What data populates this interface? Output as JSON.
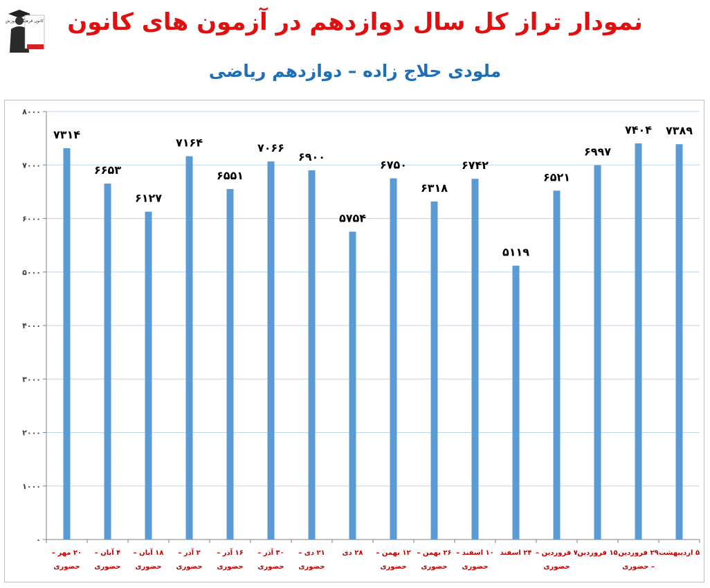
{
  "header": {
    "title": "نمودار تراز کل سال دوازدهم در آزمون های کانون",
    "subtitle": "ملودی حلاج زاده – دوازدهم ریاضی"
  },
  "logo": {
    "text": "کانون فرهنگی آموزش",
    "icon": "graduate-figure-icon"
  },
  "colors": {
    "title": "#e01010",
    "subtitle": "#1f6fb8",
    "bar": "#5b9bd5",
    "grid": "#bdd7ee",
    "tick_label": "#c00000",
    "data_label": "#000000"
  },
  "chart_data": {
    "type": "bar",
    "title": "نمودار تراز کل سال دوازدهم در آزمون های کانون",
    "subtitle": "ملودی حلاج زاده – دوازدهم ریاضی",
    "xlabel": "",
    "ylabel": "",
    "ylim": [
      0,
      8000
    ],
    "yticks": [
      0,
      1000,
      2000,
      3000,
      4000,
      5000,
      6000,
      7000,
      8000
    ],
    "ytick_labels": [
      "۰",
      "۱۰۰۰",
      "۲۰۰۰",
      "۳۰۰۰",
      "۴۰۰۰",
      "۵۰۰۰",
      "۶۰۰۰",
      "۷۰۰۰",
      "۸۰۰۰"
    ],
    "grid": true,
    "legend": "none",
    "categories": [
      [
        "۲۰ مهر –",
        "حضوری"
      ],
      [
        "۴ آبان –",
        "حضوری"
      ],
      [
        "۱۸ آبان –",
        "حضوری"
      ],
      [
        "۲ آذر –",
        "حضوری"
      ],
      [
        "۱۶ آذر –",
        "حضوری"
      ],
      [
        "۳۰ آذر –",
        "حضوری"
      ],
      [
        "۲۱ دی –",
        "حضوری"
      ],
      [
        "۲۸ دی"
      ],
      [
        "۱۲ بهمن –",
        "حضوری"
      ],
      [
        "۲۶ بهمن –",
        "حضوری"
      ],
      [
        "۱۰ اسفند –",
        "حضوری"
      ],
      [
        "۲۴ اسفند"
      ],
      [
        "۷ فروردین –",
        "حضوری"
      ],
      [
        "۱۵ فروردین"
      ],
      [
        "۲۹ فروردین",
        "– حضوری"
      ],
      [
        "۵ اردیبهشت"
      ]
    ],
    "values": [
      7314,
      6653,
      6127,
      7164,
      6551,
      7066,
      6900,
      5754,
      6750,
      6318,
      6742,
      5119,
      6521,
      6997,
      7404,
      7389
    ],
    "data_labels": [
      "۷۳۱۴",
      "۶۶۵۳",
      "۶۱۲۷",
      "۷۱۶۴",
      "۶۵۵۱",
      "۷۰۶۶",
      "۶۹۰۰",
      "۵۷۵۴",
      "۶۷۵۰",
      "۶۳۱۸",
      "۶۷۴۲",
      "۵۱۱۹",
      "۶۵۲۱",
      "۶۹۹۷",
      "۷۴۰۴",
      "۷۳۸۹"
    ]
  }
}
